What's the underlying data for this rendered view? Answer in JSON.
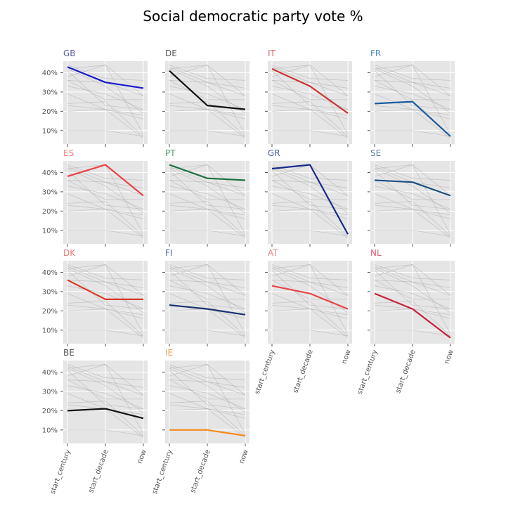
{
  "chart_data": {
    "type": "line",
    "title": "Social democratic party vote %",
    "categories": [
      "start_century",
      "start_decade",
      "now"
    ],
    "ylim": [
      3,
      46
    ],
    "yticks": [
      10,
      20,
      30,
      40
    ],
    "ytick_labels": [
      "10%",
      "20%",
      "30%",
      "40%"
    ],
    "grid": true,
    "series": [
      {
        "name": "GB",
        "values": [
          43,
          35,
          32
        ],
        "color": "#1a1acc",
        "label_color": "#5a5aa0"
      },
      {
        "name": "DE",
        "values": [
          41,
          23,
          21
        ],
        "color": "#111111",
        "label_color": "#555555"
      },
      {
        "name": "IT",
        "values": [
          42,
          33,
          19
        ],
        "color": "#cc3333",
        "label_color": "#e06060"
      },
      {
        "name": "FR",
        "values": [
          24,
          25,
          7
        ],
        "color": "#1a5ca0",
        "label_color": "#4a88c0"
      },
      {
        "name": "ES",
        "values": [
          38,
          44,
          28
        ],
        "color": "#e84545",
        "label_color": "#ee8080"
      },
      {
        "name": "PT",
        "values": [
          44,
          37,
          36
        ],
        "color": "#1a7040",
        "label_color": "#4a9a70"
      },
      {
        "name": "GR",
        "values": [
          42,
          44,
          8
        ],
        "color": "#1a2a8c",
        "label_color": "#4a5aa8"
      },
      {
        "name": "SE",
        "values": [
          36,
          35,
          28
        ],
        "color": "#1a4f80",
        "label_color": "#5a80a8"
      },
      {
        "name": "DK",
        "values": [
          36,
          26,
          26
        ],
        "color": "#d93a2a",
        "label_color": "#e87a70"
      },
      {
        "name": "FI",
        "values": [
          23,
          21,
          18
        ],
        "color": "#1a3270",
        "label_color": "#4a6aa0"
      },
      {
        "name": "AT",
        "values": [
          33,
          29,
          21
        ],
        "color": "#e84545",
        "label_color": "#ee8080"
      },
      {
        "name": "NL",
        "values": [
          29,
          21,
          6
        ],
        "color": "#c8203a",
        "label_color": "#e06075"
      },
      {
        "name": "BE",
        "values": [
          20,
          21,
          16
        ],
        "color": "#111111",
        "label_color": "#555555"
      },
      {
        "name": "IE",
        "values": [
          10,
          10,
          7
        ],
        "color": "#f58a1f",
        "label_color": "#f5a050"
      }
    ]
  }
}
